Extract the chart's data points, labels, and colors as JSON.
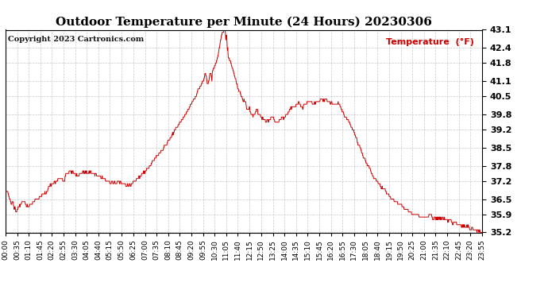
{
  "title": "Outdoor Temperature per Minute (24 Hours) 20230306",
  "copyright_text": "Copyright 2023 Cartronics.com",
  "legend_label": "Temperature  (°F)",
  "line_color": "#cc0000",
  "background_color": "#ffffff",
  "grid_color": "#bbbbbb",
  "ylim": [
    35.2,
    43.1
  ],
  "yticks": [
    35.2,
    35.9,
    36.5,
    37.2,
    37.8,
    38.5,
    39.2,
    39.8,
    40.5,
    41.1,
    41.8,
    42.4,
    43.1
  ],
  "xtick_labels": [
    "00:00",
    "00:35",
    "01:10",
    "01:45",
    "02:20",
    "02:55",
    "03:30",
    "04:05",
    "04:40",
    "05:15",
    "05:50",
    "06:25",
    "07:00",
    "07:35",
    "08:10",
    "08:45",
    "09:20",
    "09:55",
    "10:30",
    "11:05",
    "11:40",
    "12:15",
    "12:50",
    "13:25",
    "14:00",
    "14:35",
    "15:10",
    "15:45",
    "16:20",
    "16:55",
    "17:30",
    "18:05",
    "18:40",
    "19:15",
    "19:50",
    "20:25",
    "21:00",
    "21:35",
    "22:10",
    "22:45",
    "23:20",
    "23:55"
  ],
  "title_fontsize": 11,
  "axis_fontsize": 6.5,
  "legend_fontsize": 8,
  "copyright_fontsize": 7,
  "ytick_fontsize": 8
}
